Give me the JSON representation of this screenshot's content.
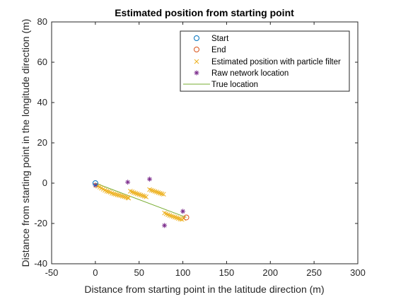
{
  "chart_data": {
    "type": "scatter",
    "title": "Estimated position from starting point",
    "xlabel": "Distance from starting point in the latitude direction (m)",
    "ylabel": "Distance from starting point in the longitude direction (m)",
    "xlim": [
      -50,
      300
    ],
    "ylim": [
      -40,
      80
    ],
    "xticks": [
      -50,
      0,
      50,
      100,
      150,
      200,
      250,
      300
    ],
    "yticks": [
      -40,
      -20,
      0,
      20,
      40,
      60,
      80
    ],
    "xtick_labels": [
      "-50",
      "0",
      "50",
      "100",
      "150",
      "200",
      "250",
      "300"
    ],
    "ytick_labels": [
      "-40",
      "-20",
      "0",
      "20",
      "40",
      "60",
      "80"
    ],
    "grid": false,
    "legend_position": "top-right",
    "series": [
      {
        "name": "Start",
        "marker": "circle",
        "color": "#0072BD",
        "x": [
          0
        ],
        "y": [
          0
        ]
      },
      {
        "name": "End",
        "marker": "circle",
        "color": "#D95319",
        "x": [
          104
        ],
        "y": [
          -17
        ]
      },
      {
        "name": "Estimated position with particle filter",
        "marker": "x",
        "color": "#EDB120",
        "x": [
          1,
          3,
          5,
          7,
          9,
          11,
          13,
          15,
          17,
          19,
          21,
          23,
          25,
          27,
          29,
          31,
          33,
          35,
          37,
          38,
          40,
          42,
          44,
          46,
          48,
          50,
          52,
          54,
          56,
          58,
          62,
          64,
          66,
          68,
          70,
          72,
          74,
          76,
          78,
          79,
          81,
          83,
          85,
          87,
          89,
          91,
          93,
          95,
          97,
          99,
          101
        ],
        "y": [
          -1,
          -1.5,
          -2,
          -2.5,
          -3,
          -3.5,
          -4,
          -4.2,
          -4.5,
          -5,
          -5.3,
          -5.5,
          -5.8,
          -6,
          -6.2,
          -6.5,
          -6.7,
          -7,
          -7.2,
          -7.4,
          -4,
          -4.3,
          -4.7,
          -5,
          -5.3,
          -5.6,
          -5.9,
          -6.2,
          -6.5,
          -6.8,
          -3.2,
          -3.5,
          -3.8,
          -4.1,
          -4.4,
          -4.7,
          -5,
          -5.3,
          -5.5,
          -14.8,
          -15.2,
          -15.6,
          -16,
          -16.3,
          -16.6,
          -16.9,
          -17.2,
          -17.5,
          -17.8,
          -18,
          -17.5
        ]
      },
      {
        "name": "Raw network location",
        "marker": "asterisk",
        "color": "#7E2F8E",
        "x": [
          0,
          37,
          62,
          79,
          100
        ],
        "y": [
          -1,
          0.5,
          2,
          -21,
          -14
        ]
      },
      {
        "name": "True location",
        "marker": "line",
        "color": "#77AC30",
        "x": [
          0,
          104
        ],
        "y": [
          0,
          -17
        ]
      }
    ]
  }
}
